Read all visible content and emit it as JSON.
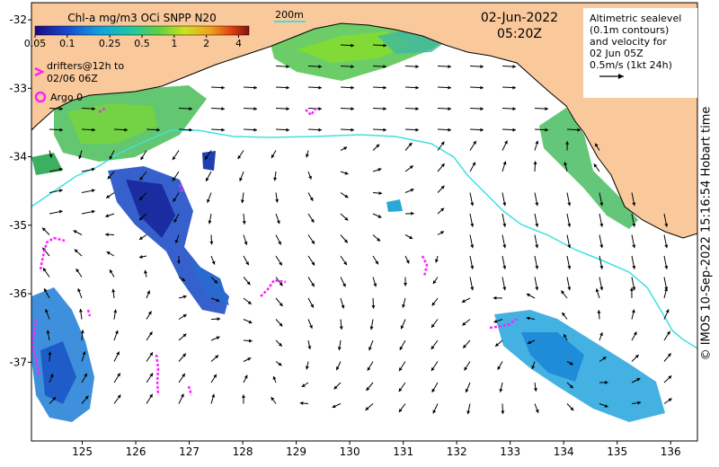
{
  "colorbar": {
    "title": "Chl-a mg/m3 OCi SNPP N20",
    "ticks": [
      "0.05",
      "0.1",
      "0.25",
      "0.5",
      "1",
      "2",
      "4"
    ]
  },
  "scale_label": "200m",
  "date": "02-Jun-2022",
  "time": "05:20Z",
  "altimetry_note": [
    "Altimetric sealevel",
    "(0.1m contours)",
    "and velocity for",
    "02 Jun 05Z",
    "0.5m/s (1kt 24h)"
  ],
  "drifters_legend": [
    "drifters@12h to",
    "02/06 06Z"
  ],
  "argo_legend": "Argo 0",
  "credit": "© IMOS 10-Sep-2022 15:16:54 Hobart time",
  "axes": {
    "lon_ticks": [
      "125",
      "126",
      "127",
      "128",
      "129",
      "130",
      "131",
      "132",
      "133",
      "134",
      "135",
      "136"
    ],
    "lat_ticks": [
      "-32",
      "-33",
      "-34",
      "-35",
      "-36",
      "-37"
    ],
    "lon_range": [
      124.05,
      136.5
    ],
    "lat_range": [
      -31.75,
      -38.15
    ]
  },
  "colors": {
    "land": "#f9c89b",
    "contour_200m": "#40e0e0",
    "drifters": "#ff22ff",
    "arrows": "#000000"
  }
}
